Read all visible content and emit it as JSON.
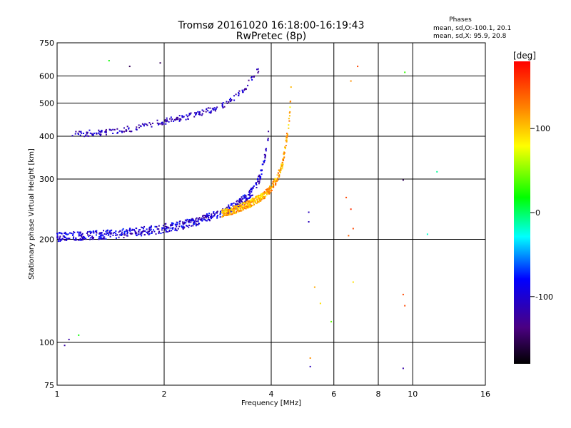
{
  "chart_data": {
    "type": "scatter",
    "title": "Tromsø 20161020 16:18:00-16:19:43",
    "subtitle": "RwPretec (8p)",
    "xlabel": "Frequency [MHz]",
    "ylabel": "Stationary phase Virtual Height [km]",
    "x_scale": "log",
    "y_scale": "log",
    "xlim": [
      1,
      16
    ],
    "ylim": [
      75,
      750
    ],
    "x_ticks": [
      1,
      2,
      4,
      6,
      8,
      10,
      16
    ],
    "y_ticks": [
      75,
      100,
      200,
      300,
      400,
      500,
      600,
      750
    ],
    "grid": true,
    "legend": {
      "heading": "Phases",
      "line1": "mean, sd,O:-100.1, 20.1",
      "line2": "mean, sd,X:  95.9, 20.8"
    },
    "colorbar": {
      "label": "[deg]",
      "range": [
        -180,
        180
      ],
      "ticks": [
        100,
        0,
        -100
      ],
      "colormap": [
        "#000000",
        "#4b0082",
        "#0000ff",
        "#00ffff",
        "#00ff00",
        "#ffff00",
        "#ff8000",
        "#ff0000"
      ]
    },
    "o_trace_lower": {
      "phase": -100,
      "x": [
        1.0,
        1.2,
        1.5,
        1.8,
        2.1,
        2.4,
        2.7,
        3.0,
        3.2,
        3.4,
        3.55,
        3.7,
        3.8,
        3.9,
        3.95
      ],
      "y": [
        203,
        205,
        208,
        212,
        217,
        224,
        232,
        243,
        252,
        265,
        278,
        300,
        330,
        380,
        440
      ]
    },
    "o_trace_upper": {
      "phase": -110,
      "x": [
        1.1,
        1.3,
        1.5,
        1.7,
        1.9,
        2.1,
        2.3,
        2.5,
        2.7,
        2.9,
        3.1,
        3.3,
        3.5,
        3.7
      ],
      "y": [
        405,
        410,
        415,
        425,
        437,
        447,
        455,
        465,
        477,
        490,
        510,
        540,
        580,
        630
      ]
    },
    "x_trace": {
      "phase": 110,
      "x": [
        2.9,
        3.2,
        3.5,
        3.8,
        4.0,
        4.15,
        4.3,
        4.4,
        4.5,
        4.55
      ],
      "y": [
        238,
        245,
        255,
        268,
        282,
        300,
        330,
        380,
        450,
        560
      ]
    },
    "scattered_points": [
      {
        "x": 1.05,
        "y": 98,
        "phase": -120
      },
      {
        "x": 1.08,
        "y": 102,
        "phase": -120
      },
      {
        "x": 1.15,
        "y": 105,
        "phase": 20
      },
      {
        "x": 1.4,
        "y": 665,
        "phase": 20
      },
      {
        "x": 1.6,
        "y": 640,
        "phase": -150
      },
      {
        "x": 1.95,
        "y": 655,
        "phase": -150
      },
      {
        "x": 5.1,
        "y": 240,
        "phase": -110
      },
      {
        "x": 5.1,
        "y": 225,
        "phase": -110
      },
      {
        "x": 5.15,
        "y": 85,
        "phase": -110
      },
      {
        "x": 5.15,
        "y": 90,
        "phase": 120
      },
      {
        "x": 5.3,
        "y": 145,
        "phase": 110
      },
      {
        "x": 5.5,
        "y": 130,
        "phase": 90
      },
      {
        "x": 5.9,
        "y": 115,
        "phase": 40
      },
      {
        "x": 6.5,
        "y": 265,
        "phase": 150
      },
      {
        "x": 6.7,
        "y": 245,
        "phase": 160
      },
      {
        "x": 6.8,
        "y": 215,
        "phase": 150
      },
      {
        "x": 6.6,
        "y": 205,
        "phase": 140
      },
      {
        "x": 6.8,
        "y": 150,
        "phase": 90
      },
      {
        "x": 7.0,
        "y": 640,
        "phase": 150
      },
      {
        "x": 6.7,
        "y": 580,
        "phase": 120
      },
      {
        "x": 9.4,
        "y": 138,
        "phase": 150
      },
      {
        "x": 9.5,
        "y": 128,
        "phase": 150
      },
      {
        "x": 9.4,
        "y": 84,
        "phase": -120
      },
      {
        "x": 9.5,
        "y": 615,
        "phase": 30
      },
      {
        "x": 9.4,
        "y": 298,
        "phase": -150
      },
      {
        "x": 11.0,
        "y": 207,
        "phase": -20
      },
      {
        "x": 11.7,
        "y": 315,
        "phase": -10
      }
    ]
  }
}
